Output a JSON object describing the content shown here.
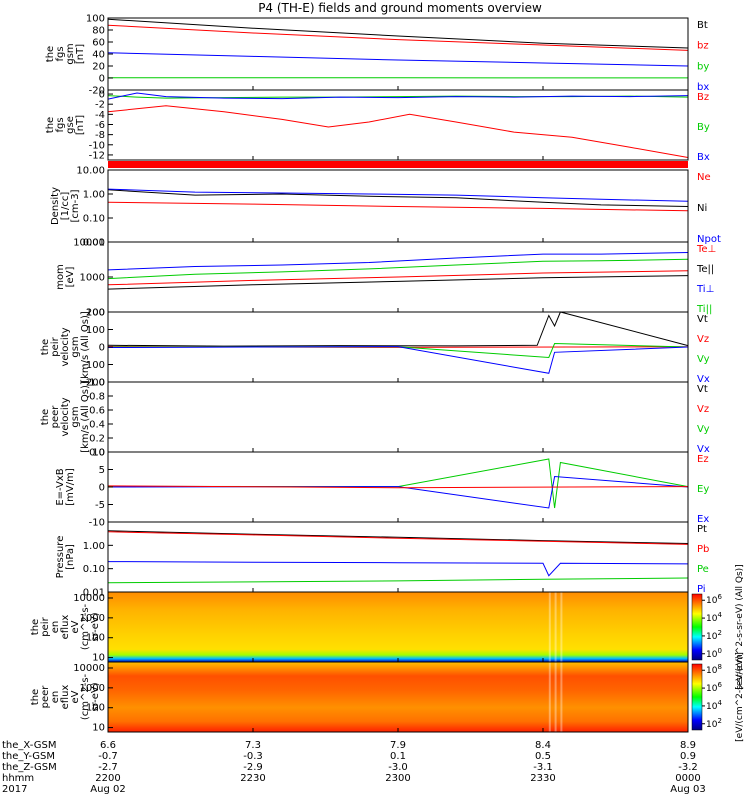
{
  "colors": {
    "black": "#000000",
    "red": "#ff0000",
    "green": "#00cc00",
    "blue": "#0000ff"
  },
  "chart_data": {
    "type": "line",
    "title": "P4 (TH-E) fields and ground moments overview",
    "panels": [
      {
        "id": "fgs-gsm",
        "ylabel_lines": [
          "the",
          "fgs",
          "gsm",
          "[nT]"
        ],
        "yticks": [
          "100",
          "80",
          "60",
          "40",
          "20",
          "0",
          "-20"
        ],
        "ylim": [
          -20,
          100
        ],
        "legend": [
          {
            "name": "Bt",
            "color": "#000000"
          },
          {
            "name": "bz",
            "color": "#ff0000"
          },
          {
            "name": "by",
            "color": "#00cc00"
          },
          {
            "name": "bx",
            "color": "#0000ff"
          }
        ],
        "series": [
          {
            "name": "Bt",
            "color": "#000000",
            "x": [
              0,
              0.25,
              0.5,
              0.75,
              1
            ],
            "y": [
              98,
              83,
              70,
              58,
              50
            ]
          },
          {
            "name": "bz",
            "color": "#ff0000",
            "x": [
              0,
              0.25,
              0.5,
              0.75,
              1
            ],
            "y": [
              88,
              75,
              64,
              55,
              46
            ]
          },
          {
            "name": "by",
            "color": "#00cc00",
            "x": [
              0,
              0.25,
              0.5,
              0.75,
              1
            ],
            "y": [
              0.5,
              0.5,
              0.3,
              0.2,
              0.2
            ]
          },
          {
            "name": "bx",
            "color": "#0000ff",
            "x": [
              0,
              0.25,
              0.5,
              0.75,
              1
            ],
            "y": [
              42,
              36,
              30,
              25,
              20
            ]
          }
        ]
      },
      {
        "id": "fgs-gse",
        "ylabel_lines": [
          "the",
          "fgs",
          "gse",
          "[nT]"
        ],
        "yticks": [
          "0",
          "-2",
          "-4",
          "-6",
          "-8",
          "-10",
          "-12"
        ],
        "ylim": [
          -13,
          0.8
        ],
        "legend": [
          {
            "name": "Bz",
            "color": "#ff0000"
          },
          {
            "name": "By",
            "color": "#00cc00"
          },
          {
            "name": "Bx",
            "color": "#0000ff"
          }
        ],
        "series": [
          {
            "name": "By",
            "color": "#00cc00",
            "x": [
              0,
              0.05,
              0.1,
              0.2,
              0.3,
              0.4,
              0.5,
              0.6,
              0.7,
              0.8,
              0.9,
              1
            ],
            "y": [
              -0.3,
              -0.6,
              -0.8,
              -0.7,
              -0.6,
              -0.6,
              -0.5,
              -0.4,
              -0.5,
              -0.5,
              -0.4,
              -0.6
            ]
          },
          {
            "name": "Bx",
            "color": "#0000ff",
            "x": [
              0,
              0.05,
              0.1,
              0.2,
              0.3,
              0.4,
              0.5,
              0.6,
              0.7,
              0.8,
              0.9,
              1
            ],
            "y": [
              -1.0,
              0.2,
              -0.5,
              -0.8,
              -0.9,
              -0.6,
              -0.7,
              -0.5,
              -0.6,
              -0.4,
              -0.5,
              -0.3
            ]
          },
          {
            "name": "Bz",
            "color": "#ff0000",
            "x": [
              0,
              0.1,
              0.2,
              0.3,
              0.38,
              0.45,
              0.52,
              0.6,
              0.7,
              0.8,
              0.9,
              1
            ],
            "y": [
              -3.5,
              -2.3,
              -3.5,
              -5.0,
              -6.5,
              -5.5,
              -4.0,
              -5.5,
              -7.5,
              -8.5,
              -10.5,
              -12.5
            ]
          }
        ]
      },
      {
        "id": "density",
        "ylabel_lines": [
          "Density",
          "[1/cc]",
          "[cm-3]"
        ],
        "yticks": [
          "10.00",
          "1.00",
          "0.10",
          "0.01"
        ],
        "ylim": [
          0.01,
          10
        ],
        "log": true,
        "legend": [
          {
            "name": "Ne",
            "color": "#ff0000"
          },
          {
            "name": "Ni",
            "color": "#000000"
          },
          {
            "name": "Npot",
            "color": "#0000ff"
          }
        ],
        "series": [
          {
            "name": "Ni",
            "color": "#000000",
            "x": [
              0,
              0.15,
              0.3,
              0.45,
              0.6,
              0.75,
              0.85,
              1
            ],
            "y": [
              1.5,
              0.9,
              1.0,
              0.8,
              0.7,
              0.45,
              0.35,
              0.3
            ]
          },
          {
            "name": "Npot",
            "color": "#0000ff",
            "x": [
              0,
              0.15,
              0.3,
              0.45,
              0.6,
              0.75,
              0.85,
              1
            ],
            "y": [
              1.6,
              1.2,
              1.1,
              1.0,
              0.9,
              0.7,
              0.6,
              0.5
            ]
          },
          {
            "name": "Ne",
            "color": "#ff0000",
            "x": [
              0,
              0.25,
              0.5,
              0.75,
              1
            ],
            "y": [
              0.45,
              0.38,
              0.3,
              0.25,
              0.2
            ]
          }
        ]
      },
      {
        "id": "temperature",
        "ylabel_lines": [
          "mom",
          "[eV]"
        ],
        "yticks": [
          "10000",
          "1000",
          "100"
        ],
        "ylim": [
          100,
          10000
        ],
        "log": true,
        "legend": [
          {
            "name": "Te⊥",
            "color": "#ff0000"
          },
          {
            "name": "Te||",
            "color": "#000000"
          },
          {
            "name": "Ti⊥",
            "color": "#0000ff"
          },
          {
            "name": "Ti||",
            "color": "#00cc00"
          }
        ],
        "series": [
          {
            "name": "Ti⊥",
            "color": "#0000ff",
            "x": [
              0,
              0.15,
              0.3,
              0.45,
              0.6,
              0.75,
              0.85,
              1
            ],
            "y": [
              1600,
              2000,
              2200,
              2600,
              3500,
              4500,
              4500,
              5000
            ]
          },
          {
            "name": "Ti||",
            "color": "#00cc00",
            "x": [
              0,
              0.15,
              0.3,
              0.45,
              0.6,
              0.75,
              0.85,
              1
            ],
            "y": [
              900,
              1200,
              1400,
              1700,
              2200,
              2800,
              2900,
              3200
            ]
          },
          {
            "name": "Te⊥",
            "color": "#ff0000",
            "x": [
              0,
              0.25,
              0.5,
              0.75,
              1
            ],
            "y": [
              600,
              800,
              1000,
              1300,
              1500
            ]
          },
          {
            "name": "Te||",
            "color": "#000000",
            "x": [
              0,
              0.25,
              0.5,
              0.75,
              1
            ],
            "y": [
              450,
              600,
              750,
              950,
              1100
            ]
          }
        ]
      },
      {
        "id": "peir-velocity",
        "ylabel_lines": [
          "the",
          "peir",
          "velocity",
          "gsm",
          "[km/s (All Qs)]"
        ],
        "yticks": [
          "200",
          "100",
          "0",
          "-100",
          "-200"
        ],
        "ylim": [
          -200,
          200
        ],
        "legend": [
          {
            "name": "Vt",
            "color": "#000000"
          },
          {
            "name": "Vz",
            "color": "#ff0000"
          },
          {
            "name": "Vy",
            "color": "#00cc00"
          },
          {
            "name": "Vx",
            "color": "#0000ff"
          }
        ],
        "series": [
          {
            "name": "Vt",
            "color": "#000000",
            "x": [
              0,
              0.2,
              0.4,
              0.6,
              0.74,
              0.76,
              0.77,
              0.78,
              1
            ],
            "y": [
              10,
              5,
              8,
              6,
              10,
              180,
              120,
              200,
              8
            ]
          },
          {
            "name": "Vz",
            "color": "#ff0000",
            "x": [
              0,
              0.5,
              1
            ],
            "y": [
              2,
              -2,
              1
            ]
          },
          {
            "name": "Vy",
            "color": "#00cc00",
            "x": [
              0,
              0.5,
              0.76,
              0.77,
              1
            ],
            "y": [
              0,
              1,
              -60,
              20,
              0
            ]
          },
          {
            "name": "Vx",
            "color": "#0000ff",
            "x": [
              0,
              0.5,
              0.76,
              0.77,
              1
            ],
            "y": [
              -3,
              2,
              -150,
              -30,
              0
            ]
          }
        ]
      },
      {
        "id": "peer-velocity",
        "ylabel_lines": [
          "the",
          "peer",
          "velocity",
          "gsm",
          "[km/s (All Qs)]"
        ],
        "yticks": [
          "1.0",
          "0.8",
          "0.6",
          "0.4",
          "0.2",
          "0.0"
        ],
        "ylim": [
          0,
          1
        ],
        "legend": [
          {
            "name": "Vt",
            "color": "#000000"
          },
          {
            "name": "Vz",
            "color": "#ff0000"
          },
          {
            "name": "Vy",
            "color": "#00cc00"
          },
          {
            "name": "Vx",
            "color": "#0000ff"
          }
        ],
        "series": []
      },
      {
        "id": "efield",
        "ylabel_lines": [
          "E=-VxB",
          "[mV/m]"
        ],
        "yticks": [
          "10",
          "5",
          "0",
          "-5",
          "-10"
        ],
        "ylim": [
          -10,
          10
        ],
        "legend": [
          {
            "name": "Ez",
            "color": "#ff0000"
          },
          {
            "name": "Ey",
            "color": "#00cc00"
          },
          {
            "name": "Ex",
            "color": "#0000ff"
          }
        ],
        "series": [
          {
            "name": "Ey",
            "color": "#00cc00",
            "x": [
              0,
              0.5,
              0.76,
              0.77,
              0.78,
              1
            ],
            "y": [
              0.2,
              0.1,
              8,
              -6,
              7,
              0.1
            ]
          },
          {
            "name": "Ex",
            "color": "#0000ff",
            "x": [
              0,
              0.5,
              0.76,
              0.77,
              1
            ],
            "y": [
              0,
              0.1,
              -6,
              3,
              0
            ]
          },
          {
            "name": "Ez",
            "color": "#ff0000",
            "x": [
              0,
              0.5,
              1
            ],
            "y": [
              0.3,
              -0.2,
              0.1
            ]
          }
        ]
      },
      {
        "id": "pressure",
        "ylabel_lines": [
          "Pressure",
          "[nPa]"
        ],
        "yticks": [
          "1.00",
          "0.10",
          "0.01"
        ],
        "ylim": [
          0.01,
          10
        ],
        "log": true,
        "legend": [
          {
            "name": "Pt",
            "color": "#000000"
          },
          {
            "name": "Pb",
            "color": "#ff0000"
          },
          {
            "name": "Pe",
            "color": "#00cc00"
          },
          {
            "name": "Pi",
            "color": "#0000ff"
          }
        ],
        "series": [
          {
            "name": "Pt",
            "color": "#000000",
            "x": [
              0,
              0.25,
              0.5,
              0.75,
              1
            ],
            "y": [
              4.2,
              3.0,
              2.2,
              1.6,
              1.2
            ]
          },
          {
            "name": "Pb",
            "color": "#ff0000",
            "x": [
              0,
              0.25,
              0.5,
              0.75,
              1
            ],
            "y": [
              3.8,
              2.8,
              2.0,
              1.5,
              1.1
            ]
          },
          {
            "name": "Pi",
            "color": "#0000ff",
            "x": [
              0,
              0.25,
              0.5,
              0.75,
              0.76,
              0.78,
              1
            ],
            "y": [
              0.2,
              0.19,
              0.18,
              0.17,
              0.05,
              0.17,
              0.16
            ]
          },
          {
            "name": "Pe",
            "color": "#00cc00",
            "x": [
              0,
              0.25,
              0.5,
              0.75,
              1
            ],
            "y": [
              0.025,
              0.027,
              0.03,
              0.035,
              0.04
            ]
          }
        ]
      },
      {
        "id": "peir-eflux",
        "type": "heatmap",
        "ylabel_lines": [
          "the",
          "peir",
          "en",
          "eflux",
          "eV",
          "(cm^2-s-",
          "sr-eV)"
        ],
        "yticks": [
          "10000",
          "1000",
          "100",
          "10"
        ],
        "colorbar_label": "[eV/(cm^2-s-sr-eV) (All Qs)]",
        "colorbar_ticks": [
          "10^6",
          "10^4",
          "10^2",
          "10^0"
        ]
      },
      {
        "id": "peer-eflux",
        "type": "heatmap",
        "ylabel_lines": [
          "the",
          "peer",
          "en",
          "eflux",
          "eV",
          "(cm^2-s-",
          "sr-eV)"
        ],
        "yticks": [
          "10000",
          "1000",
          "100",
          "10"
        ],
        "colorbar_label": "[eV/(cm^2-s-sr-eV)]",
        "colorbar_ticks": [
          "10^8",
          "10^6",
          "10^4",
          "10^2"
        ]
      }
    ],
    "x_axis": {
      "row_labels": [
        "the_X-GSM",
        "the_Y-GSM",
        "the_Z-GSM",
        "hhmm",
        "2017"
      ],
      "columns": [
        [
          "6.6",
          "-0.7",
          "-2.7",
          "2200",
          "Aug 02"
        ],
        [
          "7.3",
          "-0.3",
          "-2.9",
          "2230",
          ""
        ],
        [
          "7.9",
          "0.1",
          "-3.0",
          "2300",
          ""
        ],
        [
          "8.4",
          "0.5",
          "-3.1",
          "2330",
          ""
        ],
        [
          "8.9",
          "0.9",
          "-3.2",
          "0000",
          "Aug 03"
        ]
      ]
    }
  }
}
